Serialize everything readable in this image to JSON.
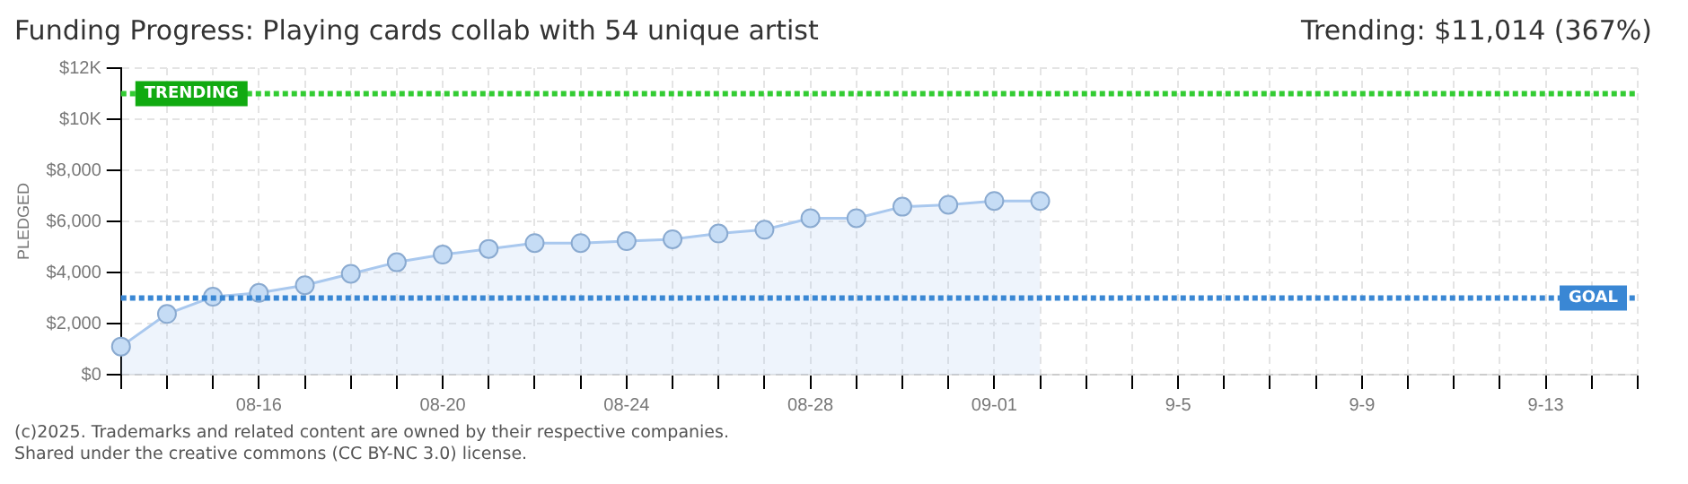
{
  "chart_data": {
    "type": "area",
    "title": "Funding Progress: Playing cards collab with 54 unique artist",
    "ylabel": "PLEDGED",
    "annotations": [
      "Trending: $11,014 (367%)",
      "(c)2025. Trademarks and related content are owned by their respective companies.",
      "Shared under the creative commons (CC BY-NC 3.0) license."
    ],
    "categories": [
      null,
      null,
      null,
      "08-16",
      null,
      null,
      null,
      "08-20",
      null,
      null,
      null,
      "08-24",
      null,
      null,
      null,
      "08-28",
      null,
      null,
      null,
      "09-01",
      null,
      null,
      null,
      "9-5",
      null,
      null,
      null,
      "9-9",
      null,
      null,
      null,
      "9-13",
      null,
      null
    ],
    "series": [
      {
        "color": "#a9c8ee",
        "values": [
          1100,
          2375,
          3050,
          3200,
          3500,
          3950,
          4400,
          4700,
          4925,
          5150,
          5150,
          5225,
          5300,
          5525,
          5675,
          6125,
          6125,
          6575,
          6650,
          6800,
          6800,
          null,
          null,
          null,
          null,
          null,
          null,
          null,
          null,
          null,
          null,
          null,
          null,
          null
        ]
      }
    ],
    "ylim": [
      0,
      12000
    ],
    "yticks": [
      {
        "value": 0,
        "label": "$0"
      },
      {
        "value": 2000,
        "label": "$2,000"
      },
      {
        "value": 4000,
        "label": "$4,000"
      },
      {
        "value": 6000,
        "label": "$6,000"
      },
      {
        "value": 8000,
        "label": "$8,000"
      },
      {
        "value": 10000,
        "label": "$10K"
      },
      {
        "value": 12000,
        "label": "$12K"
      }
    ],
    "ref_lines": [
      {
        "axis": "y",
        "value": 11000,
        "label": "TRENDING",
        "color": "#33cc33"
      },
      {
        "axis": "y",
        "value": 3000,
        "label": "GOAL",
        "color": "#3a87d4"
      }
    ],
    "grid": true,
    "legend": false,
    "marker": "circle"
  }
}
